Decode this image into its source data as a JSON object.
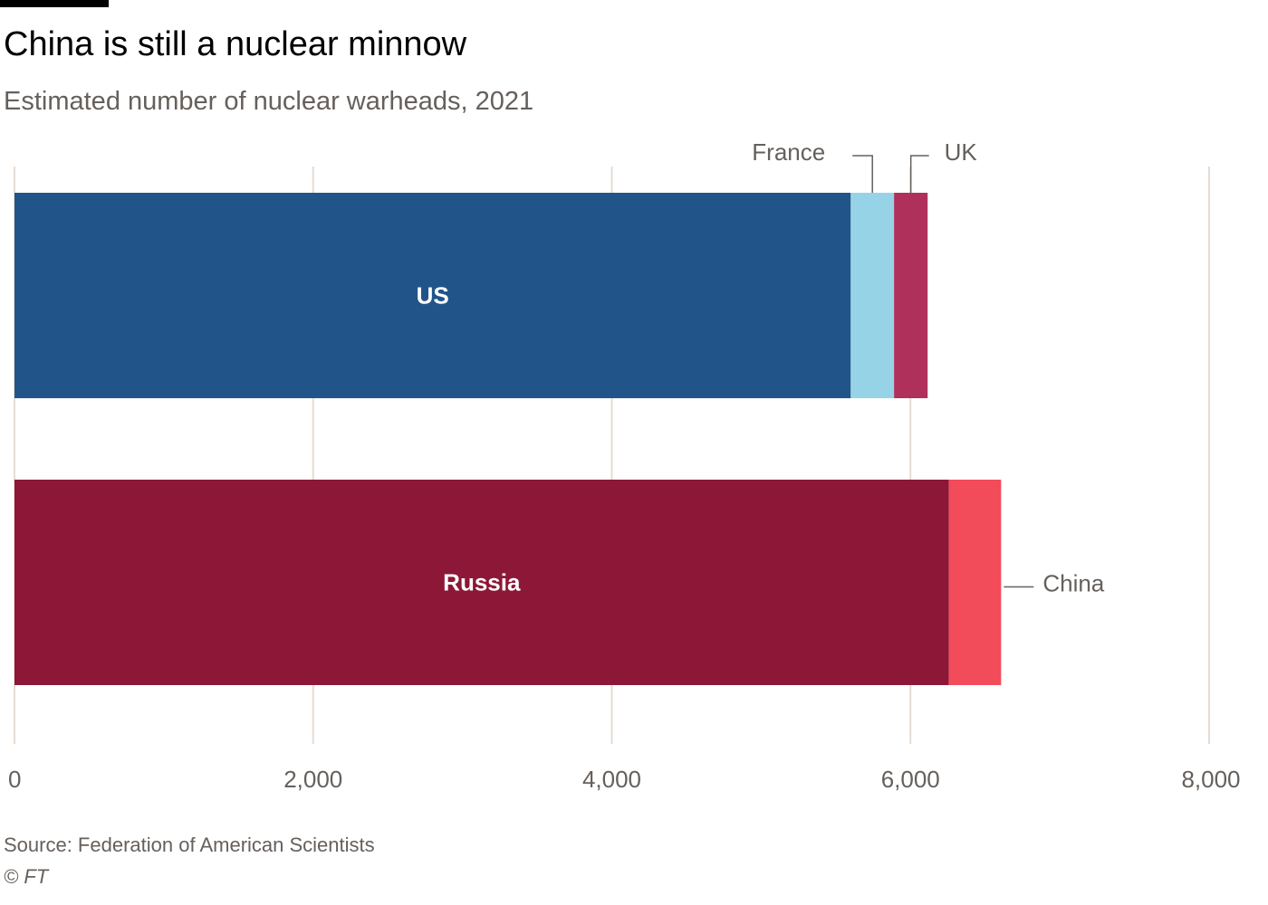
{
  "header": {
    "title": "China is still a nuclear minnow",
    "subtitle": "Estimated number of nuclear warheads, 2021"
  },
  "footer": {
    "source": "Source: Federation of American Scientists",
    "credit": "© FT"
  },
  "colors": {
    "us": "#215589",
    "france": "#96d3e6",
    "uk": "#b0305c",
    "russia": "#8c1736",
    "china": "#f24b5a",
    "grid": "#e6dcd3",
    "axis_text": "#66605c",
    "bar_label": "#ffffff"
  },
  "chart_data": {
    "type": "bar",
    "orientation": "horizontal",
    "stacked": true,
    "title": "China is still a nuclear minnow",
    "subtitle": "Estimated number of nuclear warheads, 2021",
    "xlim": [
      0,
      8000
    ],
    "x_ticks": [
      0,
      2000,
      4000,
      6000,
      8000
    ],
    "x_tick_labels": [
      "0",
      "2,000",
      "4,000",
      "6,000",
      "8,000"
    ],
    "grid": true,
    "bars": [
      {
        "segments": [
          {
            "name": "US",
            "value": 5600,
            "color": "#215589",
            "label_position": "inside"
          },
          {
            "name": "France",
            "value": 290,
            "color": "#96d3e6",
            "label_position": "above"
          },
          {
            "name": "UK",
            "value": 225,
            "color": "#b0305c",
            "label_position": "above"
          }
        ]
      },
      {
        "segments": [
          {
            "name": "Russia",
            "value": 6257,
            "color": "#8c1736",
            "label_position": "inside"
          },
          {
            "name": "China",
            "value": 350,
            "color": "#f24b5a",
            "label_position": "right"
          }
        ]
      }
    ]
  }
}
